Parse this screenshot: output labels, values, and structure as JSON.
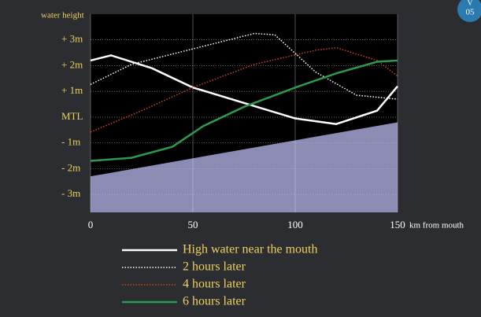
{
  "chart_data": {
    "type": "line",
    "y_label": "water height",
    "x_label": "km from mouth",
    "badge": [
      "V",
      "05"
    ],
    "xlim": [
      0,
      150
    ],
    "xticks": [
      0,
      50,
      100,
      150
    ],
    "ylim": [
      -3.7,
      4
    ],
    "yticks": [
      {
        "value": 3,
        "label": "+ 3m"
      },
      {
        "value": 2,
        "label": "+ 2m"
      },
      {
        "value": 1,
        "label": "+ 1m"
      },
      {
        "value": 0,
        "label": "MTL"
      },
      {
        "value": -1,
        "label": "- 1m"
      },
      {
        "value": -2,
        "label": "- 2m"
      },
      {
        "value": -3,
        "label": "- 3m"
      }
    ],
    "grid": true,
    "bed": {
      "color": "#9a9ac8",
      "x": [
        0,
        150
      ],
      "values": [
        -2.3,
        -0.2
      ]
    },
    "series": [
      {
        "name": "High water near the mouth",
        "color": "#ffffff",
        "dash": false,
        "x": [
          0,
          10,
          30,
          50,
          75,
          100,
          120,
          140,
          150
        ],
        "values": [
          2.2,
          2.4,
          1.9,
          1.15,
          0.55,
          -0.05,
          -0.27,
          0.25,
          1.2
        ]
      },
      {
        "name": "2 hours later",
        "color": "#ffffff",
        "dash": true,
        "x": [
          0,
          20,
          50,
          80,
          90,
          110,
          130,
          150
        ],
        "values": [
          1.27,
          2.05,
          2.65,
          3.25,
          3.2,
          1.75,
          0.85,
          0.7
        ]
      },
      {
        "name": "4 hours later",
        "color": "#d04020",
        "dash": true,
        "x": [
          0,
          25,
          50,
          80,
          110,
          120,
          140,
          150
        ],
        "values": [
          -0.58,
          0.25,
          1.15,
          2.05,
          2.6,
          2.7,
          2.2,
          1.6
        ]
      },
      {
        "name": "6 hours later",
        "color": "#2a9a50",
        "dash": false,
        "x": [
          0,
          20,
          40,
          55,
          75,
          100,
          120,
          140,
          150
        ],
        "values": [
          -1.7,
          -1.58,
          -1.15,
          -0.35,
          0.4,
          1.15,
          1.7,
          2.15,
          2.2
        ]
      }
    ]
  }
}
